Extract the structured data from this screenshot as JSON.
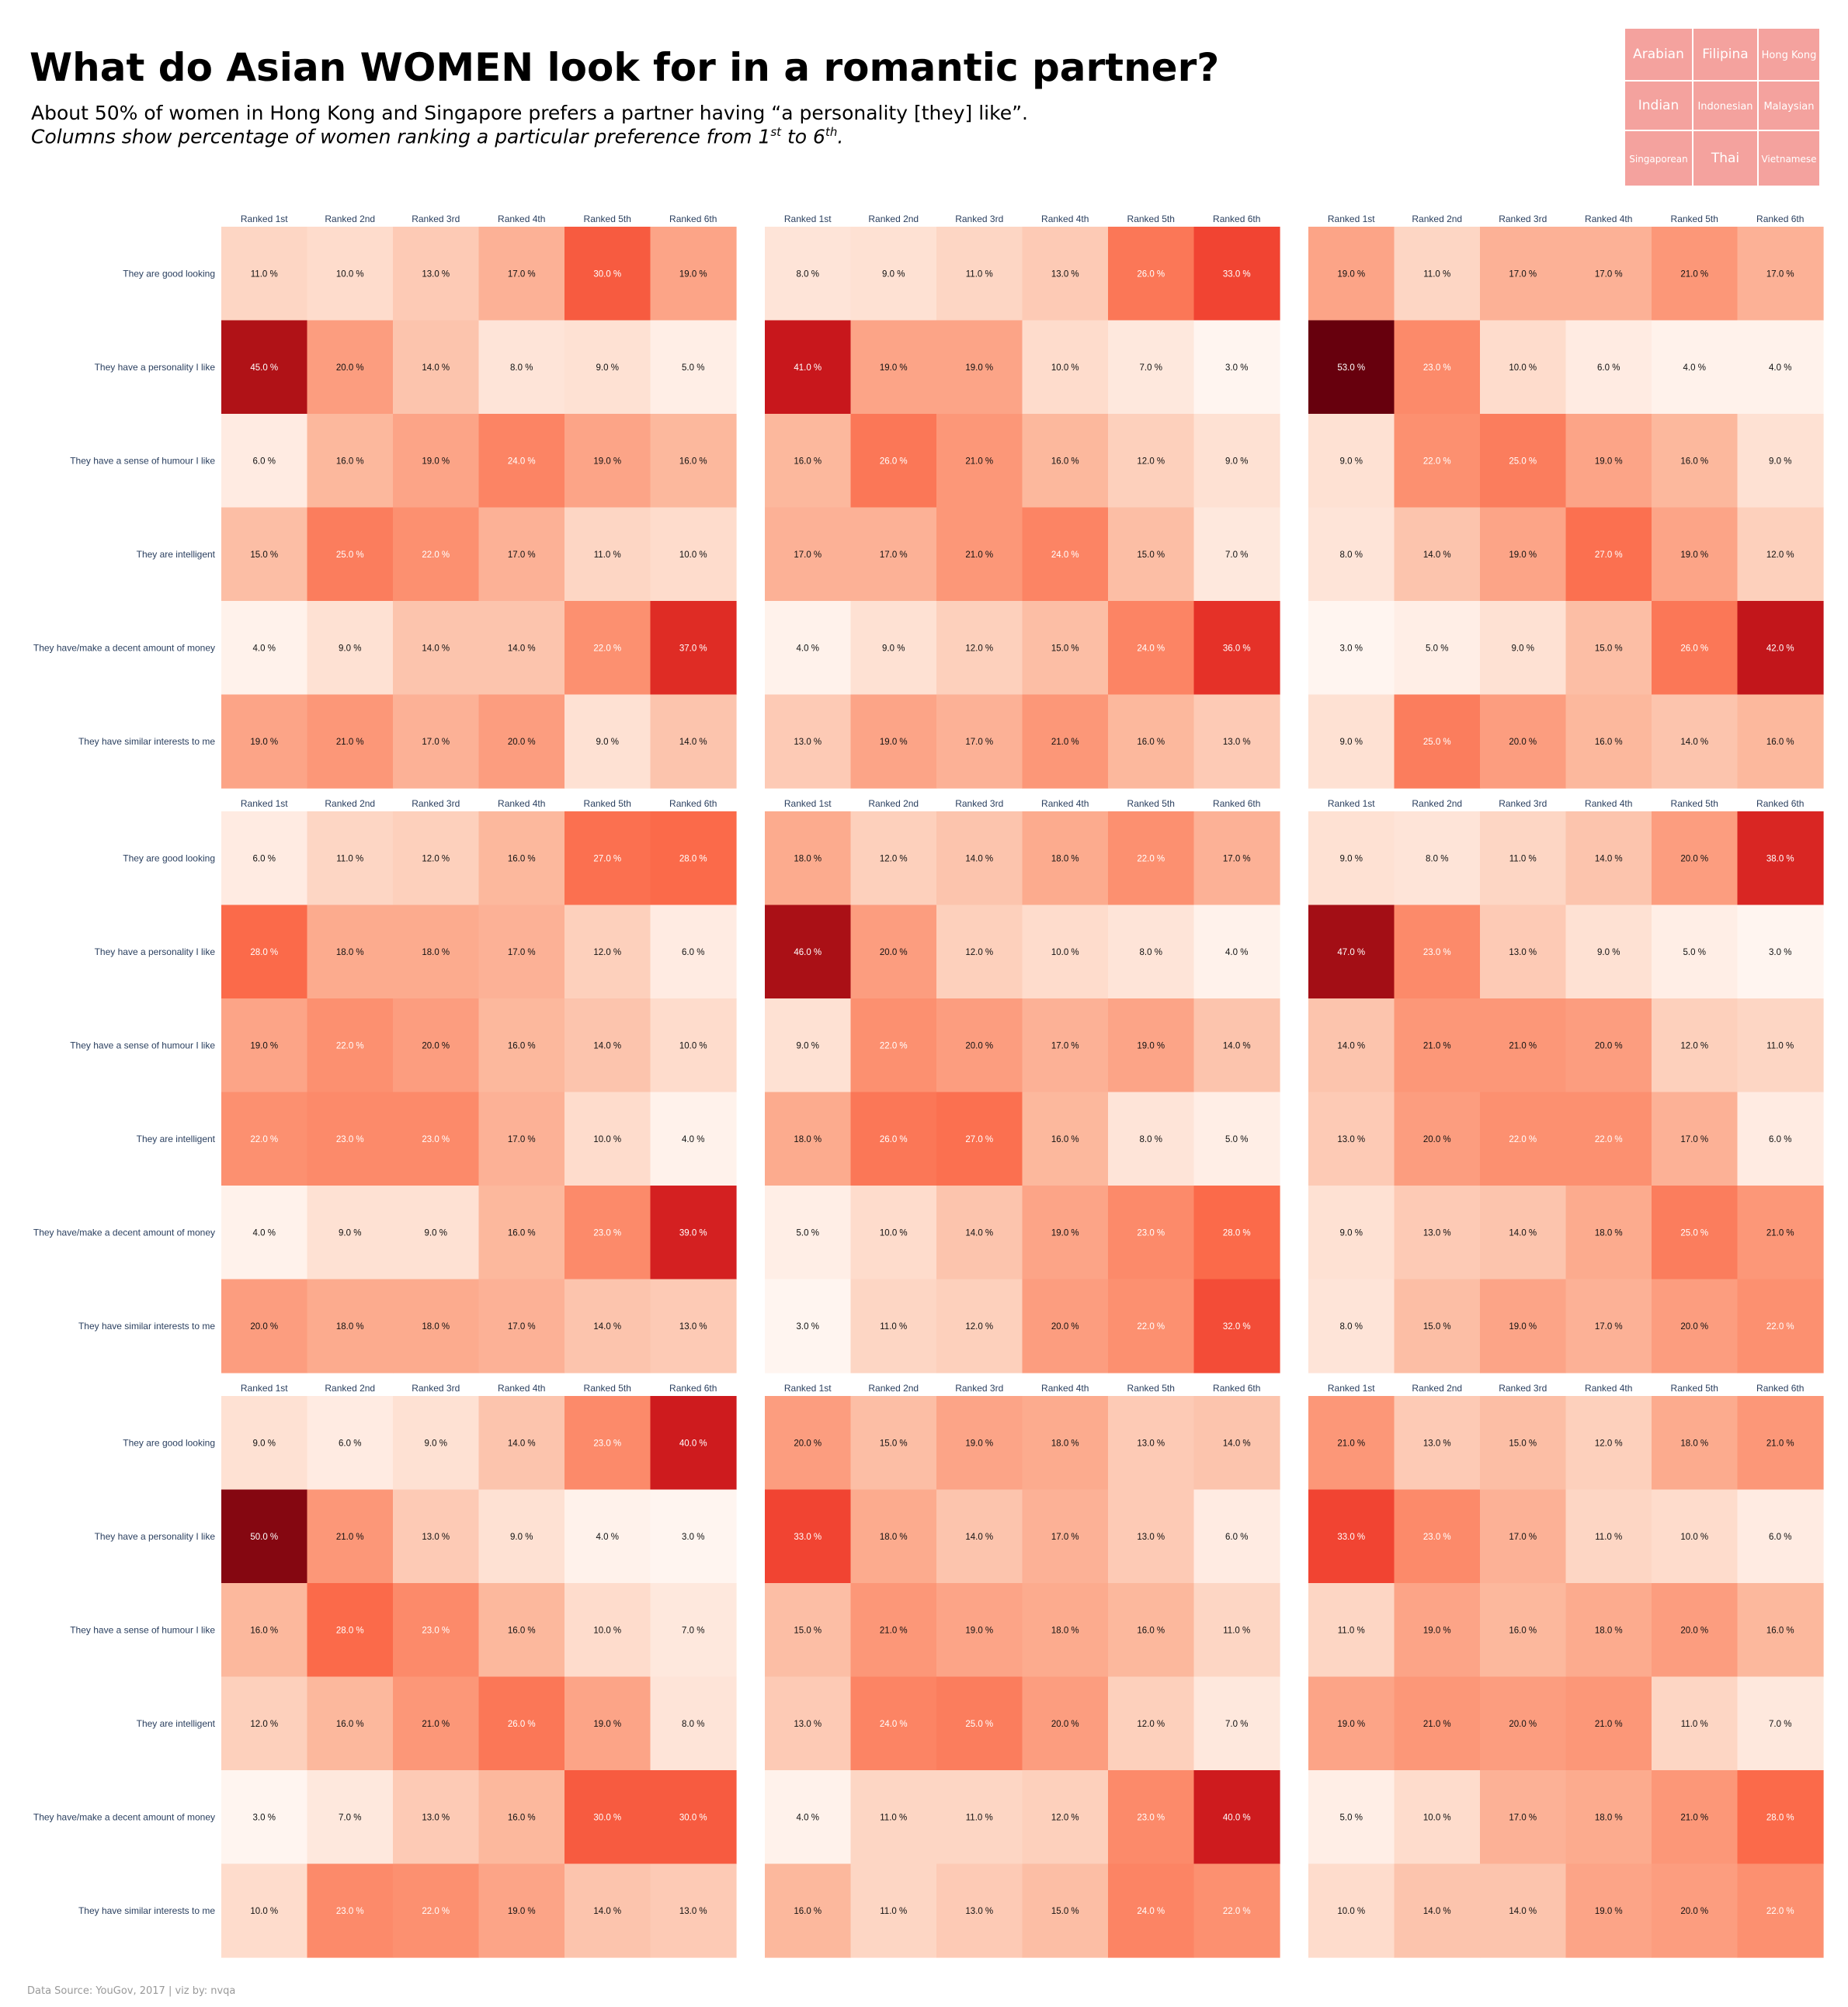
{
  "header": {
    "title": "What do Asian WOMEN look for in a romantic partner?",
    "subtitle_line1": "About 50% of women in Hong Kong and Singapore prefers a partner having “a personality [they] like”.",
    "subtitle_line2_prefix": "Columns show percentage of women ranking a particular preference from 1",
    "subtitle_line2_sup1": "st",
    "subtitle_line2_mid": " to 6",
    "subtitle_line2_sup2": "th",
    "subtitle_line2_suffix": "."
  },
  "legend": {
    "items": [
      "Arabian",
      "Filipina",
      "Hong Kong",
      "Indian",
      "Indonesian",
      "Malaysian",
      "Singaporean",
      "Thai",
      "Vietnamese"
    ],
    "color": "#f4a29e"
  },
  "footer": {
    "source": "Data Source: YouGov, 2017 | viz by: nvqa"
  },
  "chart_data": {
    "type": "heatmap",
    "colormap": "Reds",
    "value_range": [
      3,
      53
    ],
    "value_suffix": " %",
    "columns": [
      "Ranked 1st",
      "Ranked 2nd",
      "Ranked 3rd",
      "Ranked 4th",
      "Ranked 5th",
      "Ranked 6th"
    ],
    "rows": [
      "They are good looking",
      "They have a personality I like",
      "They have a sense of humour I like",
      "They are intelligent",
      "They have/make a decent amount of money",
      "They have similar interests to me"
    ],
    "panels": [
      {
        "values": [
          [
            11,
            10,
            13,
            17,
            30,
            19
          ],
          [
            45,
            20,
            14,
            8,
            9,
            5
          ],
          [
            6,
            16,
            19,
            24,
            19,
            16
          ],
          [
            15,
            25,
            22,
            17,
            11,
            10
          ],
          [
            4,
            9,
            14,
            14,
            22,
            37
          ],
          [
            19,
            21,
            17,
            20,
            9,
            14
          ]
        ]
      },
      {
        "values": [
          [
            8,
            9,
            11,
            13,
            26,
            33
          ],
          [
            41,
            19,
            19,
            10,
            7,
            3
          ],
          [
            16,
            26,
            21,
            16,
            12,
            9
          ],
          [
            17,
            17,
            21,
            24,
            15,
            7
          ],
          [
            4,
            9,
            12,
            15,
            24,
            36
          ],
          [
            13,
            19,
            17,
            21,
            16,
            13
          ]
        ]
      },
      {
        "values": [
          [
            19,
            11,
            17,
            17,
            21,
            17
          ],
          [
            53,
            23,
            10,
            6,
            4,
            4
          ],
          [
            9,
            22,
            25,
            19,
            16,
            9
          ],
          [
            8,
            14,
            19,
            27,
            19,
            12
          ],
          [
            3,
            5,
            9,
            15,
            26,
            42
          ],
          [
            9,
            25,
            20,
            16,
            14,
            16
          ]
        ]
      },
      {
        "values": [
          [
            6,
            11,
            12,
            16,
            27,
            28
          ],
          [
            28,
            18,
            18,
            17,
            12,
            6
          ],
          [
            19,
            22,
            20,
            16,
            14,
            10
          ],
          [
            22,
            23,
            23,
            17,
            10,
            4
          ],
          [
            4,
            9,
            9,
            16,
            23,
            39
          ],
          [
            20,
            18,
            18,
            17,
            14,
            13
          ]
        ]
      },
      {
        "values": [
          [
            18,
            12,
            14,
            18,
            22,
            17
          ],
          [
            46,
            20,
            12,
            10,
            8,
            4
          ],
          [
            9,
            22,
            20,
            17,
            19,
            14
          ],
          [
            18,
            26,
            27,
            16,
            8,
            5
          ],
          [
            5,
            10,
            14,
            19,
            23,
            28
          ],
          [
            3,
            11,
            12,
            20,
            22,
            32
          ]
        ]
      },
      {
        "values": [
          [
            9,
            8,
            11,
            14,
            20,
            38
          ],
          [
            47,
            23,
            13,
            9,
            5,
            3
          ],
          [
            14,
            21,
            21,
            20,
            12,
            11
          ],
          [
            13,
            20,
            22,
            22,
            17,
            6
          ],
          [
            9,
            13,
            14,
            18,
            25,
            21
          ],
          [
            8,
            15,
            19,
            17,
            20,
            22
          ]
        ]
      },
      {
        "values": [
          [
            9,
            6,
            9,
            14,
            23,
            40
          ],
          [
            50,
            21,
            13,
            9,
            4,
            3
          ],
          [
            16,
            28,
            23,
            16,
            10,
            7
          ],
          [
            12,
            16,
            21,
            26,
            19,
            8
          ],
          [
            3,
            7,
            13,
            16,
            30,
            30
          ],
          [
            10,
            23,
            22,
            19,
            14,
            13
          ]
        ]
      },
      {
        "values": [
          [
            20,
            15,
            19,
            18,
            13,
            14
          ],
          [
            33,
            18,
            14,
            17,
            13,
            6
          ],
          [
            15,
            21,
            19,
            18,
            16,
            11
          ],
          [
            13,
            24,
            25,
            20,
            12,
            7
          ],
          [
            4,
            11,
            11,
            12,
            23,
            40
          ],
          [
            16,
            11,
            13,
            15,
            24,
            22
          ]
        ]
      },
      {
        "values": [
          [
            21,
            13,
            15,
            12,
            18,
            21
          ],
          [
            33,
            23,
            17,
            11,
            10,
            6
          ],
          [
            11,
            19,
            16,
            18,
            20,
            16
          ],
          [
            19,
            21,
            20,
            21,
            11,
            7
          ],
          [
            5,
            10,
            17,
            18,
            21,
            28
          ],
          [
            10,
            14,
            14,
            19,
            20,
            22
          ]
        ]
      }
    ]
  }
}
